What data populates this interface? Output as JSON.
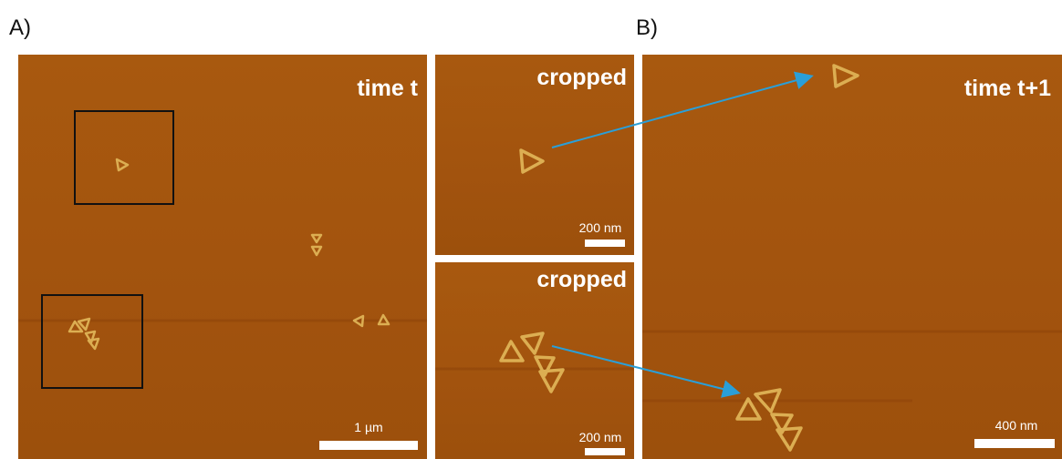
{
  "panel_letters": [
    "A)",
    "B)"
  ],
  "panels": [
    {
      "label": "time t",
      "scale_bar": "1 µm"
    },
    {
      "label": "cropped",
      "scale_bar": "200 nm"
    },
    {
      "label": "cropped",
      "scale_bar": "200 nm"
    },
    {
      "label": "time t+1",
      "scale_bar": "400 nm"
    }
  ]
}
